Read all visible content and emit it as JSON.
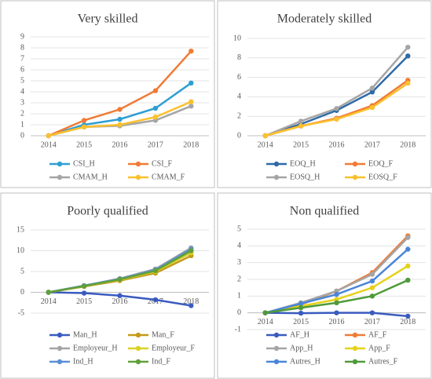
{
  "chart_data": [
    {
      "type": "line",
      "title": "Very skilled",
      "categories": [
        "2014",
        "2015",
        "2016",
        "2017",
        "2018"
      ],
      "ylim": [
        0,
        9
      ],
      "yticks": [
        0,
        1,
        2,
        3,
        4,
        5,
        6,
        7,
        8,
        9
      ],
      "grid": true,
      "series": [
        {
          "name": "CSI_H",
          "color": "#2e9fd3",
          "values": [
            0,
            1.0,
            1.5,
            2.5,
            4.8
          ]
        },
        {
          "name": "CSI_F",
          "color": "#f07b35",
          "values": [
            0,
            1.4,
            2.4,
            4.1,
            7.7
          ]
        },
        {
          "name": "CMAM_H",
          "color": "#a5a5a5",
          "values": [
            0,
            0.8,
            0.9,
            1.4,
            2.7
          ]
        },
        {
          "name": "CMAM_F",
          "color": "#fbc02d",
          "values": [
            0,
            0.8,
            1.0,
            1.7,
            3.1
          ]
        }
      ]
    },
    {
      "type": "line",
      "title": "Moderately skilled",
      "categories": [
        "2014",
        "2015",
        "2016",
        "2017",
        "2018"
      ],
      "ylim": [
        0,
        10
      ],
      "yticks": [
        0,
        2,
        4,
        6,
        8,
        10
      ],
      "grid": true,
      "series": [
        {
          "name": "EOQ_H",
          "color": "#2e6aa8",
          "values": [
            0,
            1.2,
            2.6,
            4.5,
            8.2
          ]
        },
        {
          "name": "EOQ_F",
          "color": "#f07b35",
          "values": [
            0,
            1.0,
            1.8,
            3.1,
            5.7
          ]
        },
        {
          "name": "EOSQ_H",
          "color": "#a5a5a5",
          "values": [
            0,
            1.5,
            2.8,
            4.9,
            9.1
          ]
        },
        {
          "name": "EOSQ_F",
          "color": "#fbc02d",
          "values": [
            0,
            1.0,
            1.7,
            2.9,
            5.4
          ]
        }
      ]
    },
    {
      "type": "line",
      "title": "Poorly qualified",
      "categories": [
        "2014",
        "2015",
        "2016",
        "2017",
        "2018"
      ],
      "ylim": [
        -5,
        15
      ],
      "yticks": [
        -5,
        0,
        5,
        10,
        15
      ],
      "grid": true,
      "series": [
        {
          "name": "Man_H",
          "color": "#3a5bbf",
          "values": [
            0,
            -0.2,
            -0.8,
            -1.8,
            -3.2
          ]
        },
        {
          "name": "Man_F",
          "color": "#c49a1a",
          "values": [
            0,
            1.4,
            2.8,
            4.6,
            8.8
          ]
        },
        {
          "name": "Employeur_H",
          "color": "#a5a5a5",
          "values": [
            0,
            1.6,
            3.3,
            5.6,
            10.7
          ]
        },
        {
          "name": "Employeur_F",
          "color": "#d9d225",
          "values": [
            0,
            1.5,
            3.0,
            5.0,
            9.5
          ]
        },
        {
          "name": "Ind_H",
          "color": "#5b8fd5",
          "values": [
            0,
            1.6,
            3.2,
            5.4,
            10.4
          ]
        },
        {
          "name": "Ind_F",
          "color": "#5fa03a",
          "values": [
            0,
            1.5,
            3.1,
            5.2,
            10.0
          ]
        }
      ]
    },
    {
      "type": "line",
      "title": "Non qualified",
      "categories": [
        "2014",
        "2015",
        "2016",
        "2017",
        "2018"
      ],
      "ylim": [
        -1,
        5
      ],
      "yticks": [
        -1,
        0,
        1,
        2,
        3,
        4,
        5
      ],
      "grid": true,
      "series": [
        {
          "name": "AF_H",
          "color": "#3a5bbf",
          "values": [
            0,
            -0.02,
            0,
            0,
            -0.2
          ]
        },
        {
          "name": "AF_F",
          "color": "#f07b35",
          "values": [
            0,
            0.5,
            1.3,
            2.4,
            4.6
          ]
        },
        {
          "name": "App_H",
          "color": "#a5a5a5",
          "values": [
            0,
            0.6,
            1.3,
            2.3,
            4.5
          ]
        },
        {
          "name": "App_F",
          "color": "#e5d21a",
          "values": [
            0,
            0.4,
            0.8,
            1.5,
            2.8
          ]
        },
        {
          "name": "Autres_H",
          "color": "#4a86d8",
          "values": [
            0,
            0.55,
            1.1,
            1.9,
            3.8
          ]
        },
        {
          "name": "Autres_F",
          "color": "#4e9a3a",
          "values": [
            0,
            0.3,
            0.6,
            1.0,
            1.95
          ]
        }
      ]
    }
  ]
}
